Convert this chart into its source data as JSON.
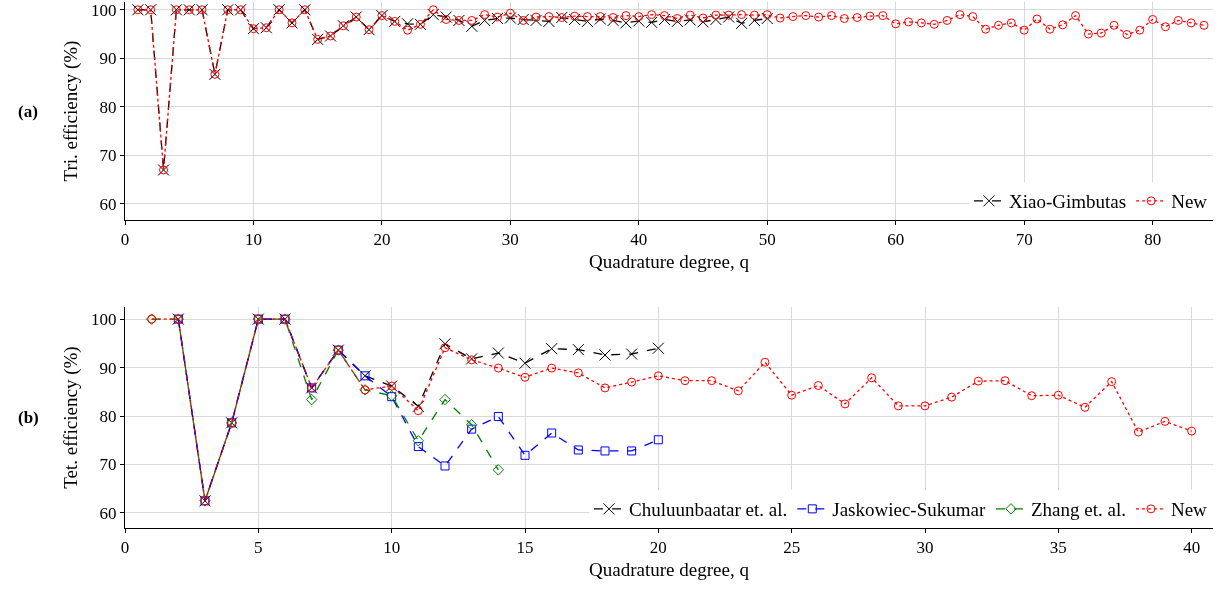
{
  "chart_data": [
    {
      "type": "line",
      "xlabel": "Quadrature degree, q",
      "ylabel": "Tri. efficiency (%)",
      "annotations": [
        "(a)"
      ],
      "xlim": [
        0,
        84.7
      ],
      "ylim": [
        56.7,
        101.6
      ],
      "xticks": [
        0,
        10,
        20,
        30,
        40,
        50,
        60,
        70,
        80
      ],
      "yticks": [
        60,
        70,
        80,
        90,
        100
      ],
      "grid": true,
      "legend": "bottom right",
      "series": [
        {
          "name": "Xiao-Gimbutas",
          "color": "#000000",
          "marker": "cross",
          "line_style": "dashed",
          "x": [
            1,
            2,
            3,
            4,
            5,
            6,
            7,
            8,
            9,
            10,
            11,
            12,
            13,
            14,
            15,
            16,
            17,
            18,
            19,
            20,
            21,
            22,
            23,
            24,
            25,
            26,
            27,
            28,
            29,
            30,
            31,
            32,
            33,
            34,
            35,
            36,
            37,
            38,
            39,
            40,
            41,
            42,
            43,
            44,
            45,
            46,
            47,
            48,
            49,
            50
          ],
          "values": [
            100,
            100,
            67,
            100,
            100,
            100,
            86.7,
            100,
            100,
            96.1,
            96.3,
            100,
            97.3,
            100,
            93.9,
            94.6,
            96.7,
            98.5,
            95.9,
            98.8,
            97.6,
            97.1,
            97,
            99,
            98.5,
            97.8,
            96.6,
            97.8,
            98.2,
            98.3,
            98,
            97.8,
            97.6,
            98.4,
            98,
            97.6,
            98.1,
            97.8,
            97.3,
            97.7,
            97.4,
            98,
            97.6,
            97.9,
            97.5,
            98,
            98.5,
            97.2,
            97.8,
            98.2
          ]
        },
        {
          "name": "New",
          "color": "#ff0000",
          "marker": "circle",
          "line_style": "dotted",
          "x": [
            1,
            2,
            3,
            4,
            5,
            6,
            7,
            8,
            9,
            10,
            11,
            12,
            13,
            14,
            15,
            16,
            17,
            18,
            19,
            20,
            21,
            22,
            23,
            24,
            25,
            26,
            27,
            28,
            29,
            30,
            31,
            32,
            33,
            34,
            35,
            36,
            37,
            38,
            39,
            40,
            41,
            42,
            43,
            44,
            45,
            46,
            47,
            48,
            49,
            50,
            51,
            52,
            53,
            54,
            55,
            56,
            57,
            58,
            59,
            60,
            61,
            62,
            63,
            64,
            65,
            66,
            67,
            68,
            69,
            70,
            71,
            72,
            73,
            74,
            75,
            76,
            77,
            78,
            79,
            80,
            81,
            82,
            83,
            84
          ],
          "values": [
            100,
            100,
            67,
            100,
            100,
            100,
            86.7,
            100,
            100,
            96.1,
            96.3,
            100,
            97.3,
            100,
            93.9,
            94.6,
            96.7,
            98.5,
            95.9,
            98.8,
            97.6,
            95.8,
            97,
            100,
            98,
            97.8,
            97.8,
            99,
            98.5,
            99.3,
            97.8,
            98.5,
            98.6,
            98.4,
            98.7,
            98.6,
            98.6,
            98.4,
            98.8,
            98.6,
            99,
            98.8,
            98.2,
            98.9,
            98.3,
            98.9,
            98.9,
            99,
            98.9,
            99,
            98.3,
            98.6,
            98.8,
            98.5,
            98.8,
            98.2,
            98.4,
            98.7,
            98.8,
            97.1,
            97.5,
            97.3,
            97,
            97.8,
            99,
            98.6,
            96,
            96.8,
            97.3,
            95.8,
            98.1,
            96,
            96.9,
            98.8,
            95,
            95.2,
            96.8,
            94.9,
            95.8,
            98,
            96.5,
            97.8,
            97.3,
            96.8
          ]
        }
      ]
    },
    {
      "type": "line",
      "xlabel": "Quadrature degree, q",
      "ylabel": "Tet. efficiency (%)",
      "annotations": [
        "(b)"
      ],
      "xlim": [
        0,
        40.8
      ],
      "ylim": [
        56.9,
        102.5
      ],
      "xticks": [
        0,
        5,
        10,
        15,
        20,
        25,
        30,
        35,
        40
      ],
      "yticks": [
        60,
        70,
        80,
        90,
        100
      ],
      "grid": true,
      "legend": "bottom right",
      "series": [
        {
          "name": "Chuluunbaatar et. al.",
          "color": "#000000",
          "marker": "cross",
          "line_style": "dashed",
          "x": [
            2,
            3,
            4,
            5,
            6,
            7,
            8,
            9,
            10,
            11,
            12,
            13,
            14,
            15,
            16,
            17,
            18,
            19,
            20
          ],
          "values": [
            100,
            62.5,
            78.6,
            100,
            100,
            85.8,
            93.6,
            88.3,
            86.2,
            82,
            94.9,
            91.8,
            93,
            90.9,
            93.9,
            93.7,
            92.6,
            92.8,
            94
          ]
        },
        {
          "name": "Jaskowiec-Sukumar",
          "color": "#0000ff",
          "marker": "square",
          "line_style": "dashed",
          "x": [
            2,
            3,
            4,
            5,
            6,
            7,
            8,
            9,
            10,
            11,
            12,
            13,
            14,
            15,
            16,
            17,
            18,
            19,
            20
          ],
          "values": [
            100,
            62.5,
            78.6,
            100,
            100,
            85.8,
            93.6,
            88.3,
            84,
            73.7,
            69.7,
            77.3,
            79.9,
            71.9,
            76.5,
            73,
            72.8,
            72.8,
            75.1
          ]
        },
        {
          "name": "Zhang et. al.",
          "color": "#008000",
          "marker": "diamond",
          "line_style": "dashed",
          "x": [
            1,
            2,
            3,
            4,
            5,
            6,
            7,
            8,
            9,
            10,
            11,
            12,
            13,
            14
          ],
          "values": [
            100,
            100,
            62.5,
            78.6,
            100,
            100,
            83.4,
            93.6,
            85.4,
            84.2,
            74.9,
            83.4,
            78.2,
            68.9
          ]
        },
        {
          "name": "New",
          "color": "#ff0000",
          "marker": "circle",
          "line_style": "dotted",
          "x": [
            1,
            2,
            3,
            4,
            5,
            6,
            7,
            8,
            9,
            10,
            11,
            12,
            13,
            14,
            15,
            16,
            17,
            18,
            19,
            20,
            21,
            22,
            23,
            24,
            25,
            26,
            27,
            28,
            29,
            30,
            31,
            32,
            33,
            34,
            35,
            36,
            37,
            38,
            39,
            40
          ],
          "values": [
            100,
            100,
            62.5,
            78.6,
            100,
            100,
            85.8,
            93.6,
            85.4,
            86.2,
            81.1,
            94.1,
            91.6,
            89.9,
            88,
            89.9,
            88.9,
            85.8,
            87,
            88.3,
            87.3,
            87.3,
            85.2,
            91.1,
            84.3,
            86.3,
            82.5,
            87.9,
            82.1,
            82.1,
            83.9,
            87.2,
            87.3,
            84.2,
            84.3,
            81.8,
            87.1,
            76.7,
            78.9,
            76.9
          ]
        }
      ]
    }
  ]
}
